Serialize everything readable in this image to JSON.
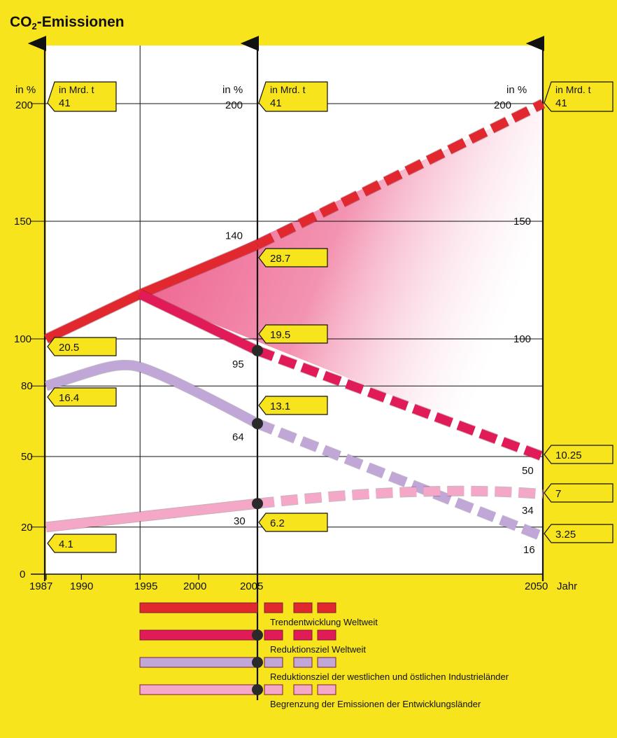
{
  "title": {
    "main": "CO",
    "sub": "2",
    "rest": "-Emissionen"
  },
  "chart_data": {
    "type": "line",
    "x_ticks": [
      "1987",
      "1990",
      "1995",
      "2000",
      "2005",
      "2050"
    ],
    "x_axis_suffix": "Jahr",
    "y_ticks": [
      "0",
      "20",
      "50",
      "80",
      "100",
      "150",
      "200"
    ],
    "y_unit_percent": "in %",
    "y_unit_tonnes": "in Mrd. t",
    "ylim": [
      0,
      200
    ],
    "colors": {
      "background": "#f7e41c",
      "plot": "#ffffff",
      "trend": "#e0282e",
      "reduktion": "#e11a58",
      "industrie": "#c1a6d8",
      "entwicklung": "#f4a7c6",
      "label_box": "#f7e41c"
    },
    "series": [
      {
        "name": "Trendentwicklung Weltweit",
        "color": "#e0282e",
        "points": [
          {
            "x": 1987,
            "y": 100,
            "t": "20.5"
          },
          {
            "x": 1995,
            "y": 119
          },
          {
            "x": 2005,
            "y": 140,
            "t": "28.7"
          },
          {
            "x": 2050,
            "y": 200,
            "t": "41"
          }
        ]
      },
      {
        "name": "Reduktionsziel Weltweit",
        "color": "#e11a58",
        "points": [
          {
            "x": 1995,
            "y": 119
          },
          {
            "x": 2005,
            "y": 95,
            "t": "19.5"
          },
          {
            "x": 2050,
            "y": 50,
            "t": "10.25"
          }
        ]
      },
      {
        "name": "Reduktionsziel der westlichen und östlichen Industrieländer",
        "color": "#c1a6d8",
        "points": [
          {
            "x": 1987,
            "y": 80,
            "t": "16.4"
          },
          {
            "x": 1995,
            "y": 88
          },
          {
            "x": 2005,
            "y": 64,
            "t": "13.1"
          },
          {
            "x": 2050,
            "y": 16,
            "t": "3.25"
          }
        ]
      },
      {
        "name": "Begrenzung der Emissionen der Entwicklungsländer",
        "color": "#f4a7c6",
        "points": [
          {
            "x": 1987,
            "y": 20,
            "t": "4.1"
          },
          {
            "x": 2005,
            "y": 30,
            "t": "6.2"
          },
          {
            "x": 2050,
            "y": 34,
            "t": "7"
          }
        ]
      }
    ],
    "annotations": {
      "left_200": {
        "pct": "200",
        "t": "41"
      },
      "mid_200": {
        "pct": "200",
        "t": "41"
      },
      "right_200": {
        "pct": "200",
        "t": "41"
      },
      "right_150": "150",
      "right_100": "100",
      "point_labels": [
        "140",
        "95",
        "64",
        "30",
        "50",
        "34",
        "16"
      ]
    }
  },
  "legend": [
    {
      "label": "Trendentwicklung Weltweit",
      "color": "#e0282e",
      "dot": false
    },
    {
      "label": "Reduktionsziel Weltweit",
      "color": "#e11a58",
      "dot": true
    },
    {
      "label": "Reduktionsziel der westlichen und östlichen Industrieländer",
      "color": "#c1a6d8",
      "dot": true
    },
    {
      "label": "Begrenzung der Emissionen der Entwicklungsländer",
      "color": "#f4a7c6",
      "dot": true
    }
  ]
}
